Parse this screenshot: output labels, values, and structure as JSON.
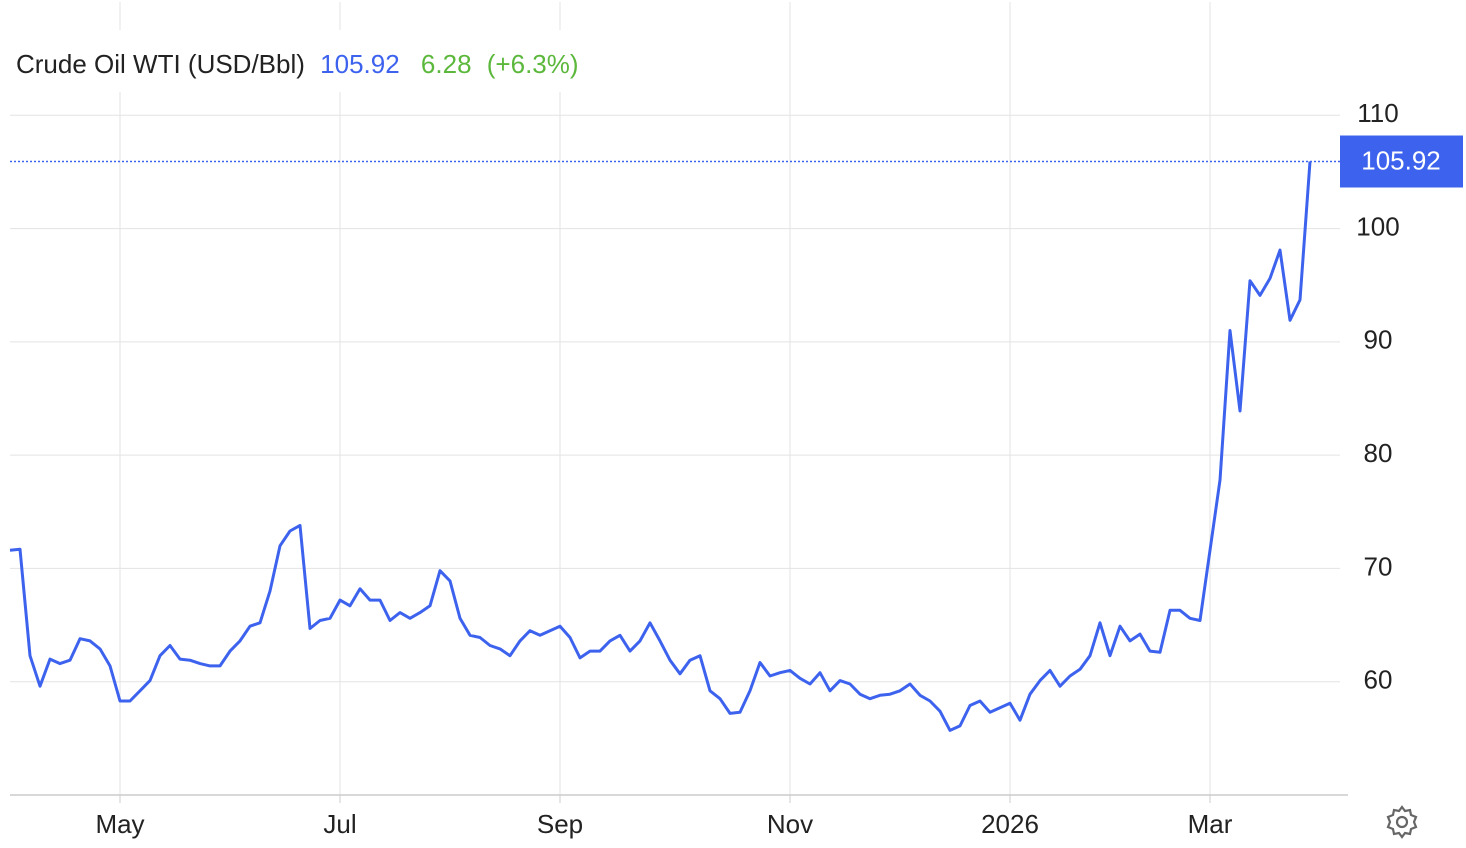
{
  "chart_data": {
    "type": "line",
    "title": "Crude Oil WTI (USD/Bbl)",
    "change": 6.28,
    "change_pct": "(+6.3%)",
    "categories": [
      null,
      null,
      null,
      null,
      null,
      null,
      null,
      null,
      null,
      null,
      null,
      "May",
      null,
      null,
      null,
      null,
      null,
      null,
      null,
      null,
      null,
      null,
      null,
      null,
      null,
      null,
      null,
      null,
      null,
      null,
      null,
      null,
      null,
      "Jul",
      null,
      null,
      null,
      null,
      null,
      null,
      null,
      null,
      null,
      null,
      null,
      null,
      null,
      null,
      null,
      null,
      null,
      null,
      null,
      null,
      null,
      "Sep",
      null,
      null,
      null,
      null,
      null,
      null,
      null,
      null,
      null,
      null,
      null,
      null,
      null,
      null,
      null,
      null,
      null,
      null,
      null,
      null,
      null,
      null,
      "Nov",
      null,
      null,
      null,
      null,
      null,
      null,
      null,
      null,
      null,
      null,
      null,
      null,
      null,
      null,
      null,
      null,
      null,
      null,
      null,
      null,
      null,
      "2026",
      null,
      null,
      null,
      null,
      null,
      null,
      null,
      null,
      null,
      null,
      null,
      null,
      null,
      null,
      null,
      null,
      null,
      null,
      null,
      "Mar",
      null,
      null,
      null,
      null,
      null,
      null,
      null,
      null,
      null,
      null
    ],
    "series": [
      {
        "name": "Crude Oil WTI",
        "color": "#3d63ee",
        "values": [
          71.6,
          71.7,
          62.3,
          59.6,
          62.0,
          61.6,
          61.9,
          63.8,
          63.6,
          62.9,
          61.4,
          58.3,
          58.3,
          59.2,
          60.1,
          62.3,
          63.2,
          62.0,
          61.9,
          61.6,
          61.4,
          61.4,
          62.7,
          63.6,
          64.9,
          65.2,
          68.0,
          72.0,
          73.3,
          73.8,
          64.7,
          65.4,
          65.6,
          67.2,
          66.7,
          68.2,
          67.2,
          67.2,
          65.4,
          66.1,
          65.6,
          66.1,
          66.7,
          69.8,
          68.9,
          65.6,
          64.1,
          63.9,
          63.2,
          62.9,
          62.3,
          63.6,
          64.5,
          64.1,
          64.5,
          64.9,
          63.9,
          62.1,
          62.7,
          62.7,
          63.6,
          64.1,
          62.7,
          63.6,
          65.2,
          63.6,
          61.9,
          60.7,
          61.9,
          62.3,
          59.2,
          58.5,
          57.2,
          57.3,
          59.2,
          61.7,
          60.5,
          60.8,
          61.0,
          60.3,
          59.8,
          60.8,
          59.2,
          60.1,
          59.8,
          58.9,
          58.5,
          58.8,
          58.9,
          59.2,
          59.8,
          58.8,
          58.3,
          57.4,
          55.7,
          56.1,
          57.9,
          58.3,
          57.3,
          57.7,
          58.1,
          56.6,
          58.9,
          60.1,
          61.0,
          59.6,
          60.5,
          61.1,
          62.3,
          65.2,
          62.3,
          64.9,
          63.6,
          64.2,
          62.7,
          62.6,
          66.3,
          66.3,
          65.6,
          65.4,
          71.6,
          77.8,
          91.0,
          83.9,
          95.4,
          94.1,
          95.6,
          98.1,
          91.9,
          93.7,
          105.92
        ]
      }
    ],
    "ylim": [
      50,
      120
    ],
    "yticks": [
      60,
      70,
      80,
      90,
      100,
      110
    ],
    "grid": true
  }
}
